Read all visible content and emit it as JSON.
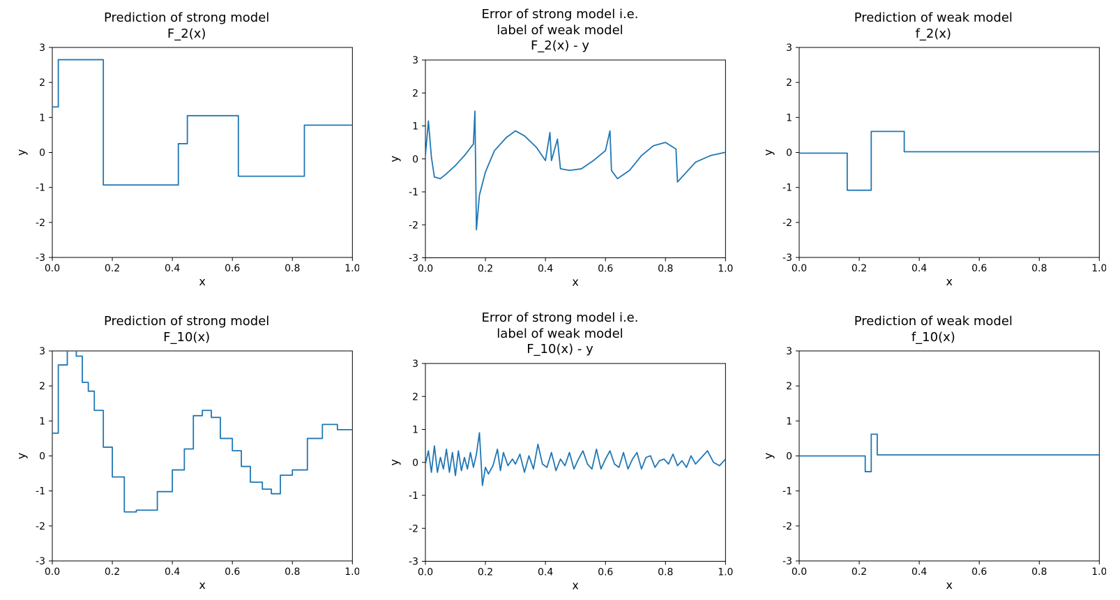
{
  "layout": {
    "rows": 2,
    "cols": 3,
    "figure_width": 1606,
    "figure_height": 860,
    "background_color": "#ffffff"
  },
  "common": {
    "xlabel": "x",
    "ylabel": "y",
    "xlim": [
      0.0,
      1.0
    ],
    "ylim": [
      -3,
      3
    ],
    "xticks": [
      0.0,
      0.2,
      0.4,
      0.6,
      0.8,
      1.0
    ],
    "yticks": [
      -3,
      -2,
      -1,
      0,
      1,
      2,
      3
    ],
    "line_color": "#1f77b4",
    "line_width": 1.8,
    "axis_color": "#000000",
    "tick_fontsize": 14,
    "label_fontsize": 16,
    "title_fontsize": 18,
    "grid": false
  },
  "panels": [
    {
      "id": "r0c0",
      "type": "line",
      "title": "Prediction of strong model\nF_2(x)",
      "x": [
        0.0,
        0.02,
        0.02,
        0.17,
        0.17,
        0.42,
        0.42,
        0.45,
        0.45,
        0.62,
        0.62,
        0.84,
        0.84,
        1.0
      ],
      "y": [
        1.3,
        1.3,
        2.65,
        2.65,
        -0.93,
        -0.93,
        0.25,
        0.25,
        1.05,
        1.05,
        -0.68,
        -0.68,
        0.78,
        0.78
      ]
    },
    {
      "id": "r0c1",
      "type": "line",
      "title": "Error of strong model i.e.\nlabel of weak model\nF_2(x) - y",
      "x": [
        0.0,
        0.01,
        0.02,
        0.03,
        0.05,
        0.07,
        0.1,
        0.13,
        0.16,
        0.165,
        0.17,
        0.18,
        0.2,
        0.23,
        0.27,
        0.3,
        0.33,
        0.37,
        0.4,
        0.415,
        0.42,
        0.44,
        0.45,
        0.48,
        0.52,
        0.56,
        0.6,
        0.615,
        0.62,
        0.64,
        0.68,
        0.72,
        0.76,
        0.8,
        0.835,
        0.84,
        0.86,
        0.9,
        0.95,
        1.0
      ],
      "y": [
        0.1,
        1.15,
        0.05,
        -0.55,
        -0.6,
        -0.45,
        -0.2,
        0.1,
        0.45,
        1.45,
        -2.15,
        -1.1,
        -0.4,
        0.25,
        0.65,
        0.85,
        0.7,
        0.35,
        -0.05,
        0.8,
        -0.05,
        0.6,
        -0.3,
        -0.35,
        -0.3,
        -0.05,
        0.25,
        0.85,
        -0.35,
        -0.6,
        -0.35,
        0.1,
        0.4,
        0.5,
        0.3,
        -0.7,
        -0.5,
        -0.1,
        0.1,
        0.2
      ]
    },
    {
      "id": "r0c2",
      "type": "line",
      "title": "Prediction of weak model\nf_2(x)",
      "x": [
        0.0,
        0.16,
        0.16,
        0.24,
        0.24,
        0.35,
        0.35,
        1.0
      ],
      "y": [
        -0.02,
        -0.02,
        -1.08,
        -1.08,
        0.6,
        0.6,
        0.02,
        0.02
      ]
    },
    {
      "id": "r1c0",
      "type": "line",
      "title": "Prediction of strong model\nF_10(x)",
      "x": [
        0.0,
        0.02,
        0.02,
        0.05,
        0.05,
        0.08,
        0.08,
        0.1,
        0.1,
        0.12,
        0.12,
        0.14,
        0.14,
        0.17,
        0.17,
        0.2,
        0.2,
        0.24,
        0.24,
        0.28,
        0.28,
        0.35,
        0.35,
        0.4,
        0.4,
        0.44,
        0.44,
        0.47,
        0.47,
        0.5,
        0.5,
        0.53,
        0.53,
        0.56,
        0.56,
        0.6,
        0.6,
        0.63,
        0.63,
        0.66,
        0.66,
        0.7,
        0.7,
        0.73,
        0.73,
        0.76,
        0.76,
        0.8,
        0.8,
        0.85,
        0.85,
        0.9,
        0.9,
        0.95,
        0.95,
        1.0
      ],
      "y": [
        0.65,
        0.65,
        2.6,
        2.6,
        3.35,
        3.35,
        2.85,
        2.85,
        2.1,
        2.1,
        1.85,
        1.85,
        1.3,
        1.3,
        0.25,
        0.25,
        -0.6,
        -0.6,
        -1.6,
        -1.6,
        -1.55,
        -1.55,
        -1.02,
        -1.02,
        -0.4,
        -0.4,
        0.2,
        0.2,
        1.15,
        1.15,
        1.3,
        1.3,
        1.1,
        1.1,
        0.5,
        0.5,
        0.15,
        0.15,
        -0.3,
        -0.3,
        -0.75,
        -0.75,
        -0.95,
        -0.95,
        -1.08,
        -1.08,
        -0.55,
        -0.55,
        -0.4,
        -0.4,
        0.5,
        0.5,
        0.9,
        0.9,
        0.75,
        0.75
      ]
    },
    {
      "id": "r1c1",
      "type": "line",
      "title": "Error of strong model i.e.\nlabel of weak model\nF_10(x) - y",
      "x": [
        0.0,
        0.01,
        0.02,
        0.03,
        0.04,
        0.05,
        0.06,
        0.07,
        0.08,
        0.09,
        0.1,
        0.11,
        0.12,
        0.13,
        0.14,
        0.15,
        0.16,
        0.17,
        0.18,
        0.19,
        0.2,
        0.21,
        0.225,
        0.24,
        0.25,
        0.26,
        0.275,
        0.29,
        0.3,
        0.315,
        0.33,
        0.345,
        0.36,
        0.375,
        0.39,
        0.405,
        0.42,
        0.435,
        0.45,
        0.465,
        0.48,
        0.495,
        0.51,
        0.525,
        0.54,
        0.555,
        0.57,
        0.585,
        0.6,
        0.615,
        0.63,
        0.645,
        0.66,
        0.675,
        0.69,
        0.705,
        0.72,
        0.735,
        0.75,
        0.765,
        0.78,
        0.795,
        0.81,
        0.825,
        0.84,
        0.855,
        0.87,
        0.885,
        0.9,
        0.92,
        0.94,
        0.96,
        0.98,
        1.0
      ],
      "y": [
        -0.05,
        0.35,
        -0.3,
        0.5,
        -0.3,
        0.15,
        -0.2,
        0.4,
        -0.3,
        0.3,
        -0.4,
        0.35,
        -0.25,
        0.15,
        -0.2,
        0.3,
        -0.15,
        0.25,
        0.9,
        -0.7,
        -0.15,
        -0.35,
        -0.1,
        0.4,
        -0.25,
        0.3,
        -0.1,
        0.1,
        -0.05,
        0.25,
        -0.3,
        0.2,
        -0.2,
        0.55,
        -0.05,
        -0.15,
        0.3,
        -0.25,
        0.1,
        -0.1,
        0.3,
        -0.2,
        0.1,
        0.35,
        -0.05,
        -0.2,
        0.4,
        -0.2,
        0.1,
        0.35,
        -0.05,
        -0.15,
        0.3,
        -0.2,
        0.1,
        0.3,
        -0.2,
        0.15,
        0.2,
        -0.15,
        0.05,
        0.1,
        -0.05,
        0.25,
        -0.1,
        0.05,
        -0.15,
        0.2,
        -0.05,
        0.15,
        0.35,
        0.0,
        -0.1,
        0.1
      ]
    },
    {
      "id": "r1c2",
      "type": "line",
      "title": "Prediction of weak model\nf_10(x)",
      "x": [
        0.0,
        0.22,
        0.22,
        0.24,
        0.24,
        0.26,
        0.26,
        1.0
      ],
      "y": [
        0.0,
        0.0,
        -0.45,
        -0.45,
        0.62,
        0.62,
        0.03,
        0.03
      ]
    }
  ]
}
